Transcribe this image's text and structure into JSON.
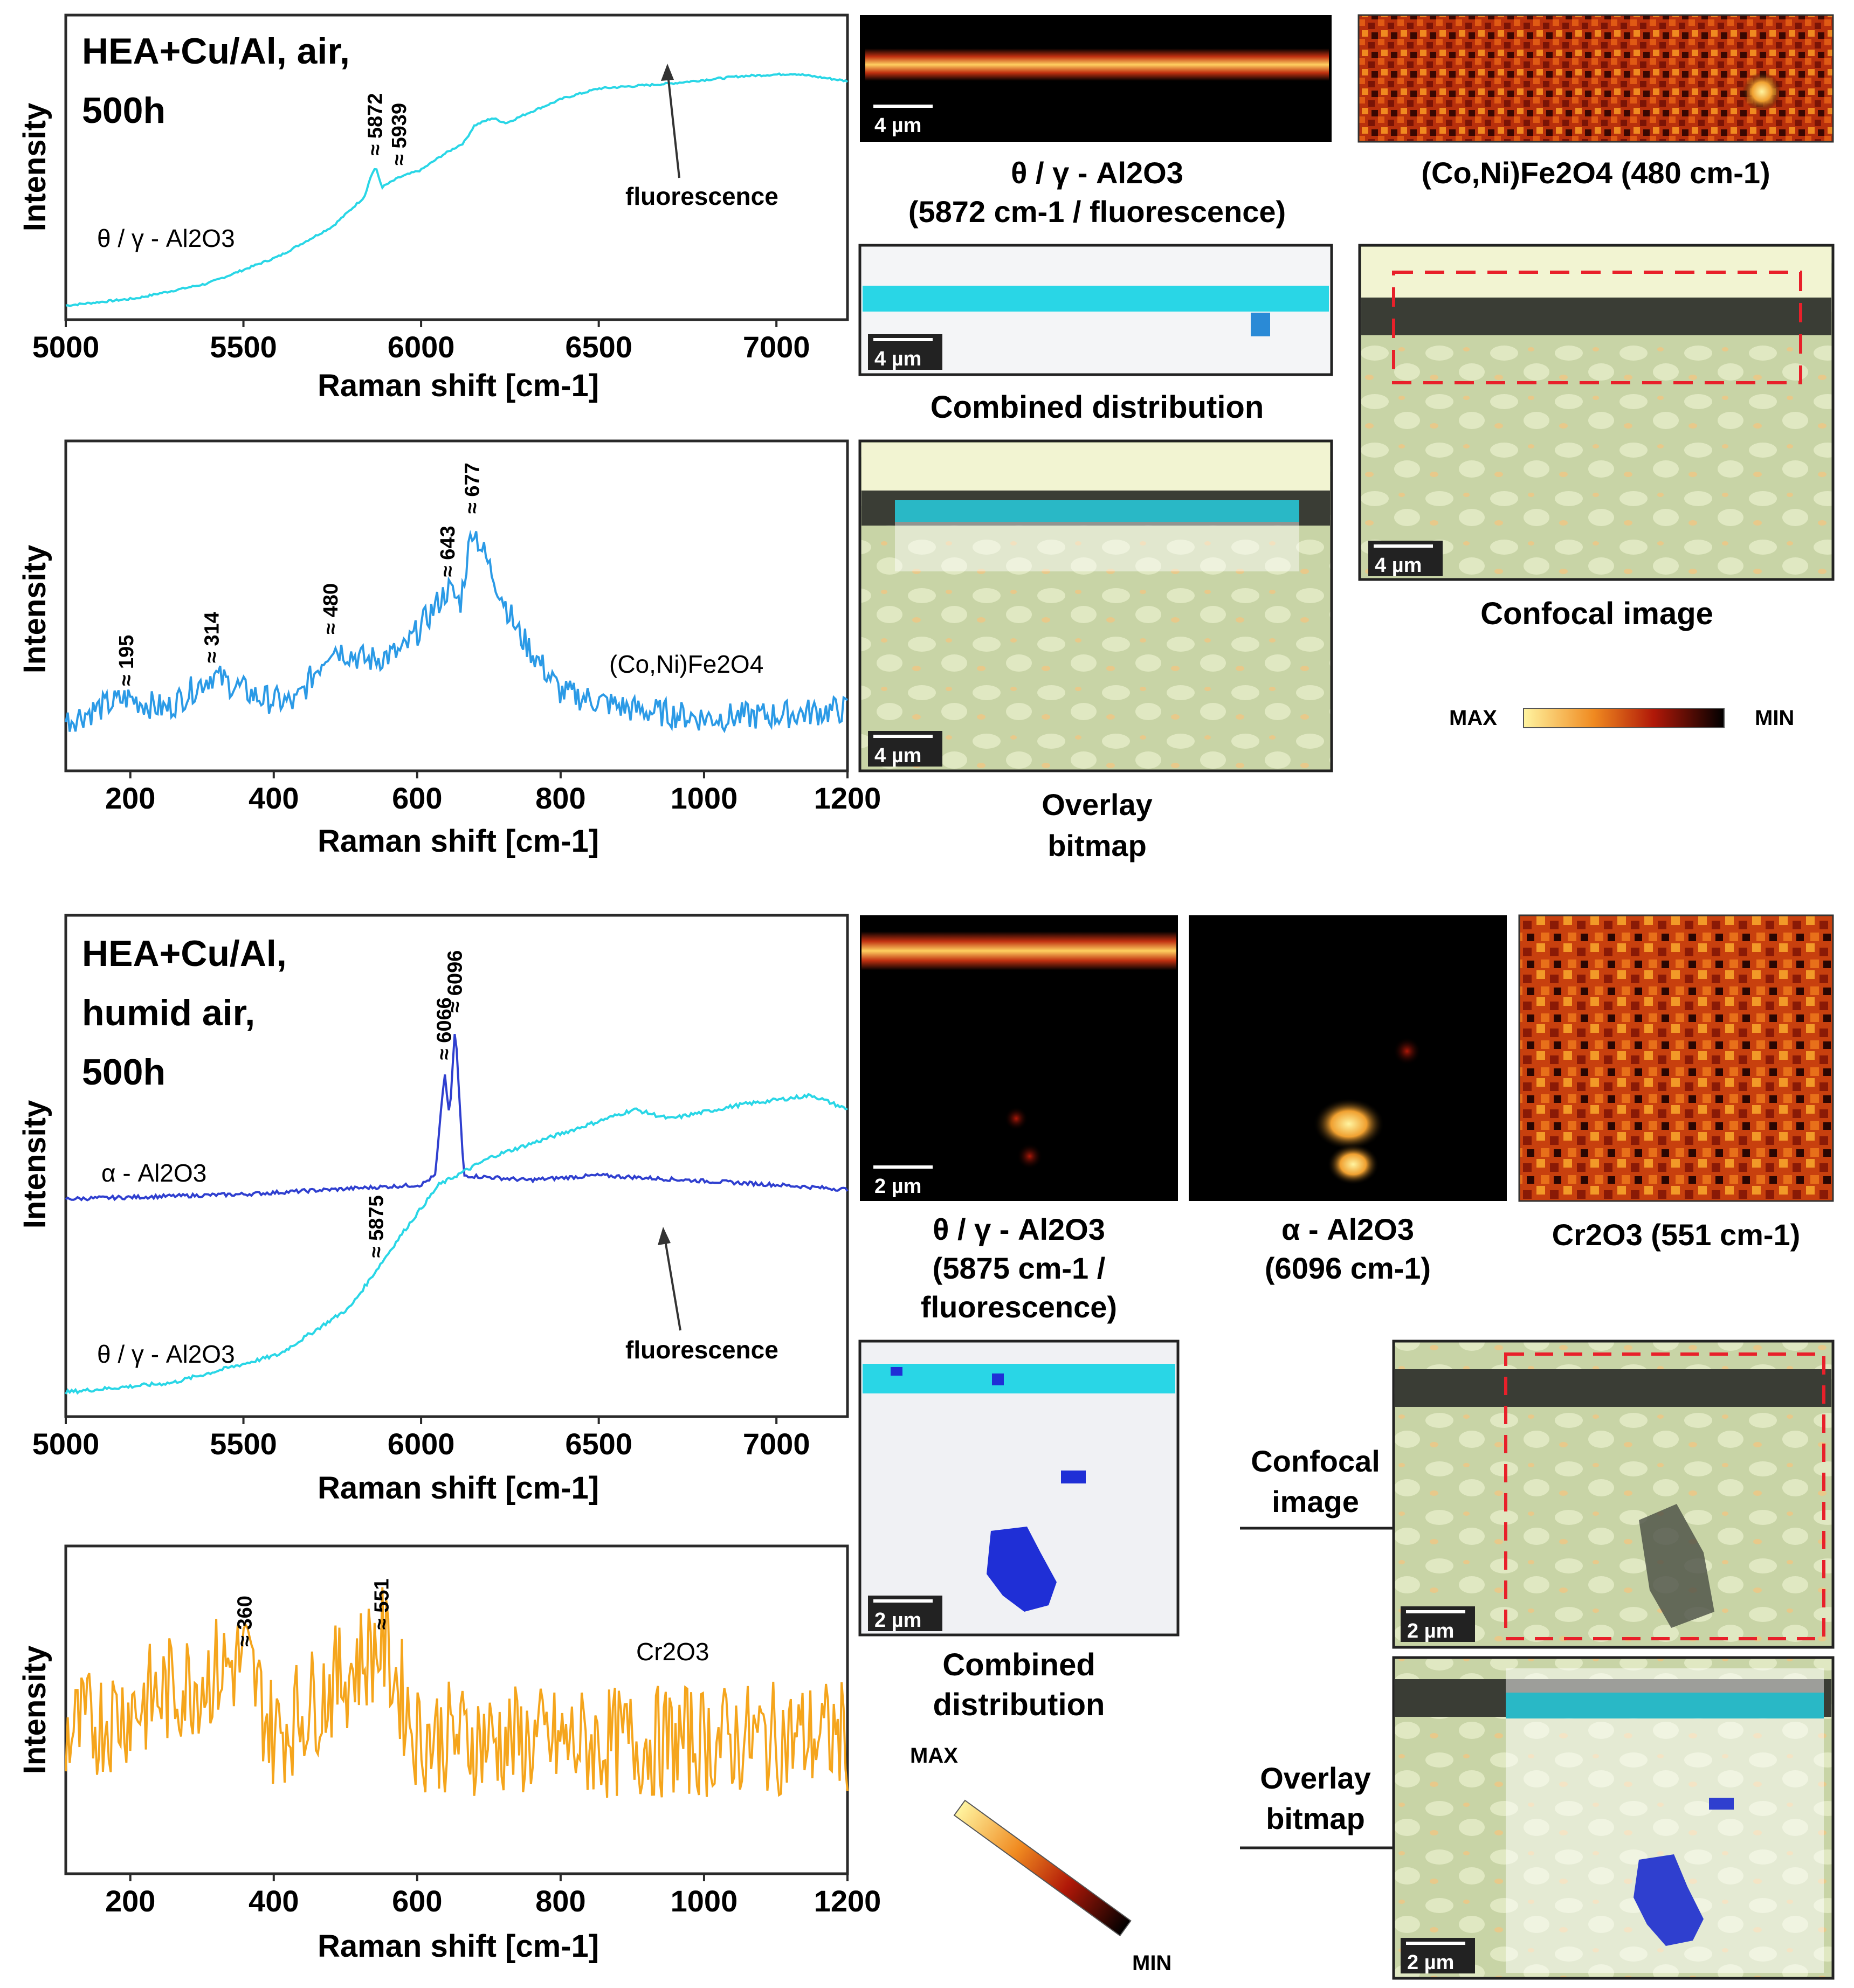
{
  "chart_data": [
    {
      "id": "p1",
      "type": "line",
      "title_lines": [
        "HEA+Cu/Al, air,",
        "500h"
      ],
      "xlabel": "Raman shift [cm-1]",
      "ylabel": "Intensity",
      "xlim": [
        5000,
        7200
      ],
      "ylim": [
        0,
        1
      ],
      "x_ticks": [
        5000,
        5500,
        6000,
        6500,
        7000
      ],
      "series": [
        {
          "name": "θ / γ - Al2O3",
          "color": "#29d6e6",
          "points": [
            [
              5000,
              0.02
            ],
            [
              5200,
              0.05
            ],
            [
              5400,
              0.11
            ],
            [
              5600,
              0.22
            ],
            [
              5750,
              0.34
            ],
            [
              5840,
              0.46
            ],
            [
              5860,
              0.55
            ],
            [
              5872,
              0.58
            ],
            [
              5890,
              0.5
            ],
            [
              5939,
              0.54
            ],
            [
              6000,
              0.57
            ],
            [
              6060,
              0.63
            ],
            [
              6120,
              0.68
            ],
            [
              6150,
              0.75
            ],
            [
              6200,
              0.78
            ],
            [
              6240,
              0.76
            ],
            [
              6300,
              0.8
            ],
            [
              6400,
              0.86
            ],
            [
              6500,
              0.9
            ],
            [
              6700,
              0.92
            ],
            [
              6900,
              0.95
            ],
            [
              7050,
              0.96
            ],
            [
              7200,
              0.93
            ]
          ]
        }
      ],
      "peak_labels": [
        {
          "x": 5872,
          "text": "≈ 5872"
        },
        {
          "x": 5939,
          "text": "≈ 5939"
        }
      ],
      "annotations": [
        {
          "x": 6700,
          "text": "fluorescence"
        }
      ]
    },
    {
      "id": "p2",
      "type": "line",
      "xlabel": "Raman shift [cm-1]",
      "ylabel": "Intensity",
      "xlim": [
        110,
        1200
      ],
      "ylim": [
        0,
        1
      ],
      "x_ticks": [
        200,
        400,
        600,
        800,
        1000,
        1200
      ],
      "series": [
        {
          "name": "(Co,Ni)Fe2O4",
          "color": "#2b9ae6",
          "points": [
            [
              110,
              0.14
            ],
            [
              195,
              0.22
            ],
            [
              250,
              0.18
            ],
            [
              314,
              0.3
            ],
            [
              380,
              0.22
            ],
            [
              430,
              0.2
            ],
            [
              480,
              0.4
            ],
            [
              530,
              0.35
            ],
            [
              580,
              0.38
            ],
            [
              643,
              0.6
            ],
            [
              660,
              0.55
            ],
            [
              677,
              0.82
            ],
            [
              700,
              0.68
            ],
            [
              740,
              0.45
            ],
            [
              800,
              0.24
            ],
            [
              900,
              0.18
            ],
            [
              1000,
              0.15
            ],
            [
              1100,
              0.16
            ],
            [
              1200,
              0.18
            ]
          ]
        }
      ],
      "peak_labels": [
        {
          "x": 195,
          "text": "≈ 195"
        },
        {
          "x": 314,
          "text": "≈ 314"
        },
        {
          "x": 480,
          "text": "≈ 480"
        },
        {
          "x": 643,
          "text": "≈ 643"
        },
        {
          "x": 677,
          "text": "≈ 677"
        }
      ]
    },
    {
      "id": "p3",
      "type": "line",
      "title_lines": [
        "HEA+Cu/Al,",
        "humid air,",
        "500h"
      ],
      "xlabel": "Raman shift [cm-1]",
      "ylabel": "Intensity",
      "xlim": [
        5000,
        7200
      ],
      "ylim": [
        0,
        1
      ],
      "x_ticks": [
        5000,
        5500,
        6000,
        6500,
        7000
      ],
      "series": [
        {
          "name": "α - Al2O3",
          "color": "#2f3fcf",
          "points": [
            [
              5000,
              0.43
            ],
            [
              5500,
              0.44
            ],
            [
              6000,
              0.46
            ],
            [
              6040,
              0.48
            ],
            [
              6066,
              0.7
            ],
            [
              6080,
              0.6
            ],
            [
              6096,
              0.8
            ],
            [
              6120,
              0.48
            ],
            [
              6300,
              0.47
            ],
            [
              6500,
              0.48
            ],
            [
              7000,
              0.46
            ],
            [
              7200,
              0.45
            ]
          ]
        },
        {
          "name": "θ / γ - Al2O3",
          "color": "#29d6e6",
          "points": [
            [
              5000,
              0.02
            ],
            [
              5300,
              0.04
            ],
            [
              5600,
              0.1
            ],
            [
              5800,
              0.2
            ],
            [
              5875,
              0.28
            ],
            [
              5950,
              0.36
            ],
            [
              6050,
              0.46
            ],
            [
              6200,
              0.52
            ],
            [
              6400,
              0.57
            ],
            [
              6600,
              0.62
            ],
            [
              6700,
              0.6
            ],
            [
              6900,
              0.63
            ],
            [
              7100,
              0.65
            ],
            [
              7200,
              0.62
            ]
          ]
        }
      ],
      "peak_labels": [
        {
          "x": 6066,
          "text": "≈ 6066"
        },
        {
          "x": 6096,
          "text": "≈ 6096"
        },
        {
          "x": 5875,
          "text": "≈ 5875"
        }
      ],
      "annotations": [
        {
          "x": 6700,
          "text": "fluorescence"
        }
      ]
    },
    {
      "id": "p4",
      "type": "line",
      "xlabel": "Raman shift [cm-1]",
      "ylabel": "Intensity",
      "xlim": [
        110,
        1200
      ],
      "ylim": [
        0,
        1
      ],
      "x_ticks": [
        200,
        400,
        600,
        800,
        1000,
        1200
      ],
      "series": [
        {
          "name": "Cr2O3",
          "color": "#f5a51c",
          "points": [
            [
              110,
              0.45
            ],
            [
              360,
              0.72
            ],
            [
              400,
              0.45
            ],
            [
              551,
              0.78
            ],
            [
              600,
              0.45
            ],
            [
              800,
              0.42
            ],
            [
              1000,
              0.43
            ],
            [
              1200,
              0.45
            ]
          ]
        }
      ],
      "peak_labels": [
        {
          "x": 360,
          "text": "≈ 360"
        },
        {
          "x": 551,
          "text": "≈ 551"
        }
      ]
    }
  ],
  "maps": {
    "theta_air": {
      "caption_lines": [
        "θ / γ - Al2O3",
        "(5872 cm-1 / fluorescence)"
      ],
      "scale": "4 µm"
    },
    "ferrite_air": {
      "caption": "(Co,Ni)Fe2O4 (480 cm-1)"
    },
    "combined_air": {
      "caption": "Combined distribution",
      "scale": "4 µm"
    },
    "overlay_air": {
      "caption_lines": [
        "Overlay",
        "bitmap"
      ],
      "scale": "4 µm"
    },
    "confocal_air": {
      "caption": "Confocal image",
      "scale": "4 µm"
    },
    "colorbar_top": {
      "max": "MAX",
      "min": "MIN"
    },
    "theta_humid": {
      "caption_lines": [
        "θ / γ - Al2O3",
        "(5875 cm-1 /",
        "fluorescence)"
      ],
      "scale": "2 µm"
    },
    "alpha_humid": {
      "caption_lines": [
        "α - Al2O3",
        "(6096 cm-1)"
      ]
    },
    "chromia_humid": {
      "caption": "Cr2O3 (551 cm-1)"
    },
    "combined_humid": {
      "caption_lines": [
        "Combined",
        "distribution"
      ],
      "scale": "2 µm"
    },
    "colorbar_bottom": {
      "max": "MAX",
      "min": "MIN"
    },
    "confocal_humid": {
      "caption_lines": [
        "Confocal",
        "image"
      ],
      "scale": "2 µm"
    },
    "overlay_humid": {
      "caption_lines": [
        "Overlay",
        "bitmap"
      ],
      "scale": "2 µm"
    }
  },
  "colors": {
    "hot_low": "#000000",
    "hot_mid": "#c0200a",
    "hot_high": "#fff4a0",
    "cyan": "#29d6e6",
    "dark_blue": "#1f2fd6",
    "micro_bg": "#c8d4a6",
    "micro_light": "#e0e8c2",
    "particle": "#e8c98a",
    "oxide_dark": "#3a3d35",
    "red_dash": "#e8202a"
  }
}
